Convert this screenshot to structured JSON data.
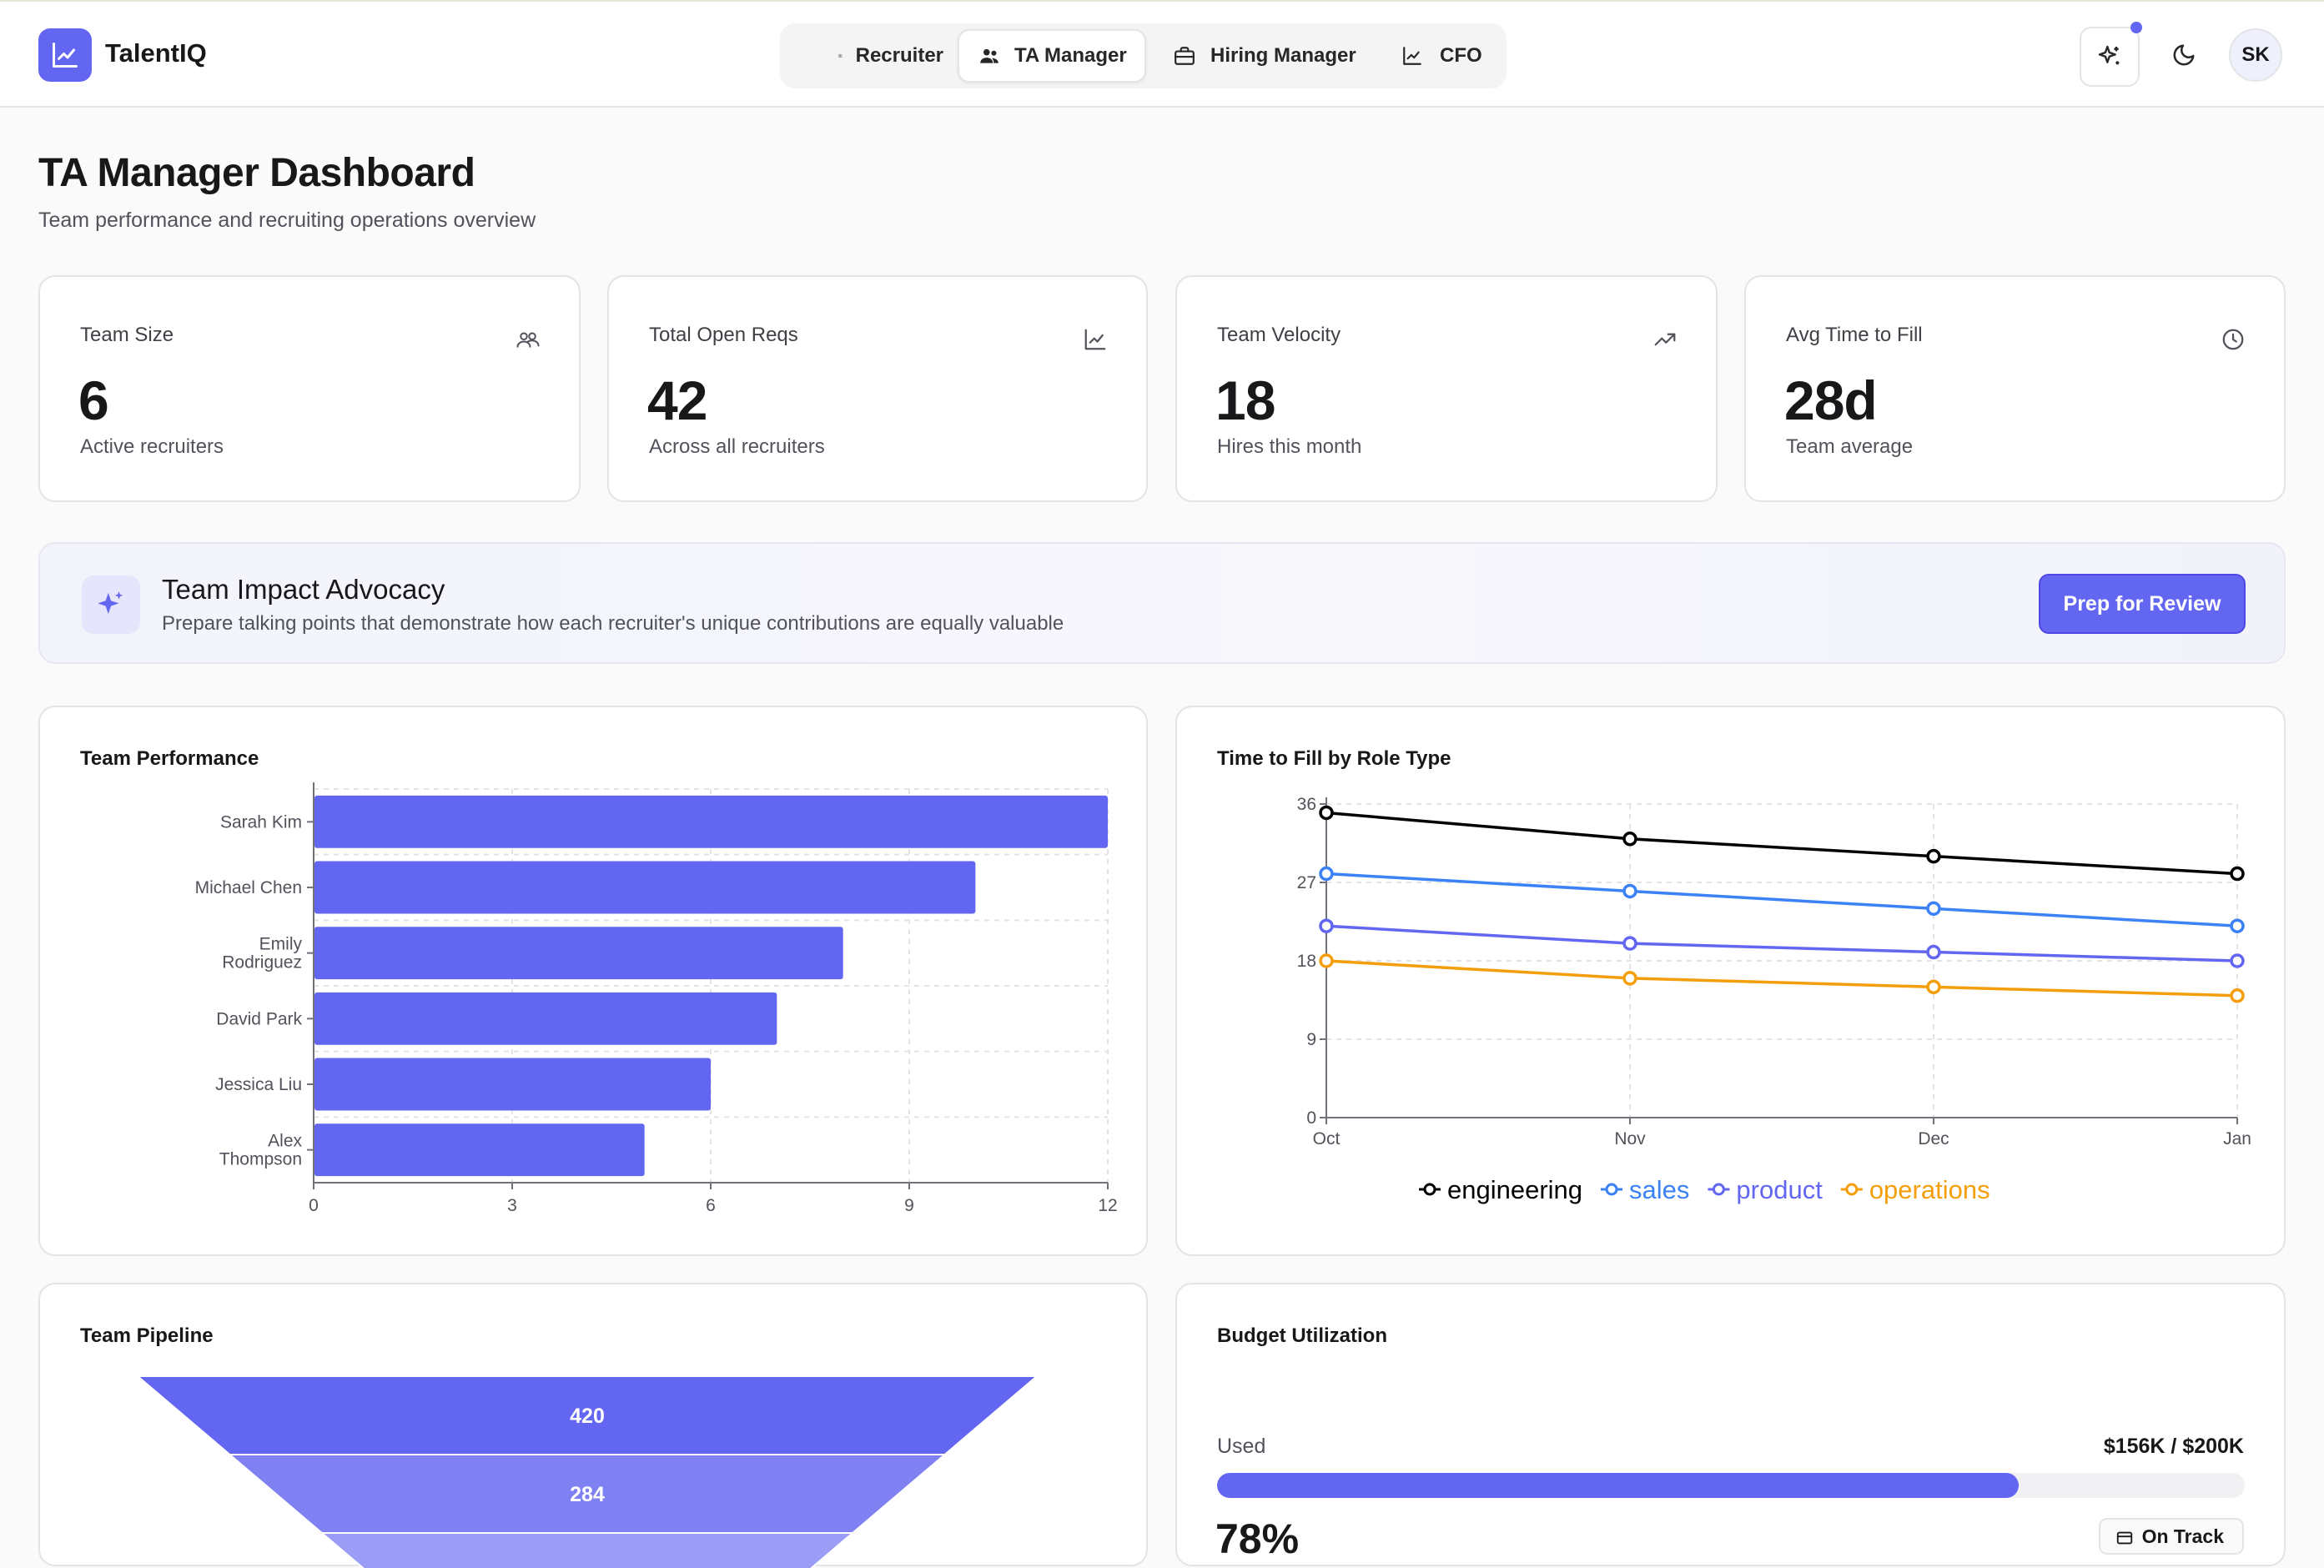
{
  "app": {
    "brand": "TalentIQ",
    "user_initials": "SK"
  },
  "nav": {
    "items": [
      {
        "label": "Recruiter",
        "icon": "user-circle-icon"
      },
      {
        "label": "TA Manager",
        "icon": "users-icon",
        "active": true
      },
      {
        "label": "Hiring Manager",
        "icon": "briefcase-icon"
      },
      {
        "label": "CFO",
        "icon": "chart-line-icon"
      }
    ]
  },
  "page": {
    "title": "TA Manager Dashboard",
    "subtitle": "Team performance and recruiting operations overview"
  },
  "stats": [
    {
      "label": "Team Size",
      "value": "6",
      "foot": "Active recruiters",
      "icon": "users-icon"
    },
    {
      "label": "Total Open Reqs",
      "value": "42",
      "foot": "Across all recruiters",
      "icon": "chart-line-icon"
    },
    {
      "label": "Team Velocity",
      "value": "18",
      "foot": "Hires this month",
      "icon": "trending-up-icon"
    },
    {
      "label": "Avg Time to Fill",
      "value": "28d",
      "foot": "Team average",
      "icon": "clock-icon"
    }
  ],
  "advocacy": {
    "title": "Team Impact Advocacy",
    "description": "Prepare talking points that demonstrate how each recruiter's unique contributions are equally valuable",
    "button": "Prep for Review"
  },
  "colors": {
    "accent": "#6366f1",
    "engineering": "#000000",
    "sales": "#3b82f6",
    "product": "#6366f1",
    "operations": "#f59e0b"
  },
  "team_performance": {
    "title": "Team Performance",
    "chart_data": {
      "type": "bar",
      "orientation": "horizontal",
      "categories": [
        "Sarah Kim",
        "Michael Chen",
        "Emily Rodriguez",
        "David Park",
        "Jessica Liu",
        "Alex Thompson"
      ],
      "values": [
        12,
        10,
        8,
        7,
        6,
        5
      ],
      "xlim": [
        0,
        12
      ],
      "xticks": [
        "0",
        "3",
        "6",
        "9",
        "12"
      ],
      "grid": true
    }
  },
  "time_to_fill": {
    "title": "Time to Fill by Role Type",
    "chart_data": {
      "type": "line",
      "categories": [
        "Oct",
        "Nov",
        "Dec",
        "Jan"
      ],
      "ylim": [
        0,
        36
      ],
      "yticks": [
        "0",
        "9",
        "18",
        "27",
        "36"
      ],
      "grid": true,
      "legend": "bottom",
      "series": [
        {
          "name": "engineering",
          "values": [
            35,
            32,
            30,
            28
          ]
        },
        {
          "name": "sales",
          "values": [
            28,
            26,
            24,
            22
          ]
        },
        {
          "name": "product",
          "values": [
            22,
            20,
            19,
            18
          ]
        },
        {
          "name": "operations",
          "values": [
            18,
            16,
            15,
            14
          ]
        }
      ]
    }
  },
  "pipeline": {
    "title": "Team Pipeline",
    "chart_data": {
      "type": "funnel",
      "values": [
        420,
        284
      ]
    }
  },
  "budget": {
    "title": "Budget Utilization",
    "used_label": "Used",
    "amount": "$156K / $200K",
    "percent_label": "78%",
    "fraction": 0.78,
    "status": "On Track"
  }
}
